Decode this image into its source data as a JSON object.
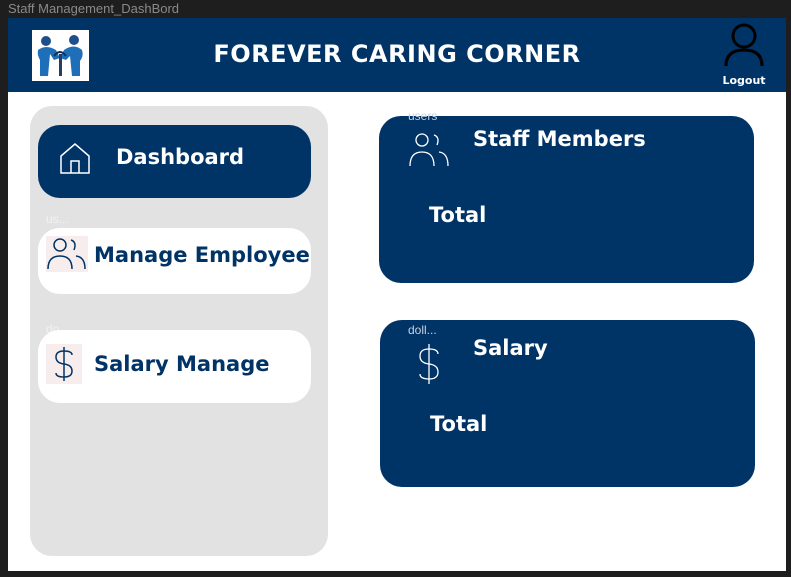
{
  "window": {
    "title": "Staff Management_DashBord"
  },
  "header": {
    "app_title": "FOREVER CARING CORNER",
    "logout_label": "Logout",
    "background": "#003366"
  },
  "sidebar": {
    "items": [
      {
        "label": "Dashboard",
        "icon": "home-icon",
        "active": true
      },
      {
        "label": "Manage Employee",
        "icon": "users-icon",
        "active": false,
        "icon_alt": "us..."
      },
      {
        "label": "Salary Manage",
        "icon": "dollar-icon",
        "active": false,
        "icon_alt": "do..."
      }
    ]
  },
  "cards": [
    {
      "title": "Staff Members",
      "total_label": "Total",
      "icon": "users-icon",
      "icon_alt": "users"
    },
    {
      "title": "Salary",
      "total_label": "Total",
      "icon": "dollar-icon",
      "icon_alt": "doll..."
    }
  ],
  "colors": {
    "primary": "#003366",
    "sidebar_bg": "#e2e2e2",
    "page_bg": "#ffffff"
  }
}
